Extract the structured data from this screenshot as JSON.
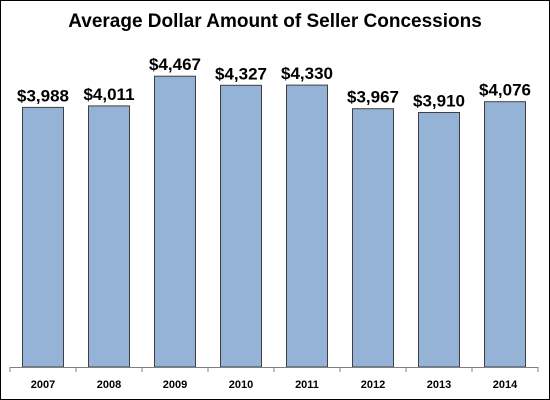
{
  "chart_data": {
    "type": "bar",
    "title": "Average Dollar Amount of Seller Concessions",
    "categories": [
      "2007",
      "2008",
      "2009",
      "2010",
      "2011",
      "2012",
      "2013",
      "2014"
    ],
    "values": [
      3988,
      4011,
      4467,
      4327,
      4330,
      3967,
      3910,
      4076
    ],
    "data_labels": [
      "$3,988",
      "$4,011",
      "$4,467",
      "$4,327",
      "$4,330",
      "$3,967",
      "$3,910",
      "$4,076"
    ],
    "xlabel": "",
    "ylabel": "",
    "ylim": [
      0,
      5000
    ],
    "grid": false,
    "legend": "none",
    "bar_color": "#95b3d7",
    "bar_outline_color": "#404040"
  }
}
